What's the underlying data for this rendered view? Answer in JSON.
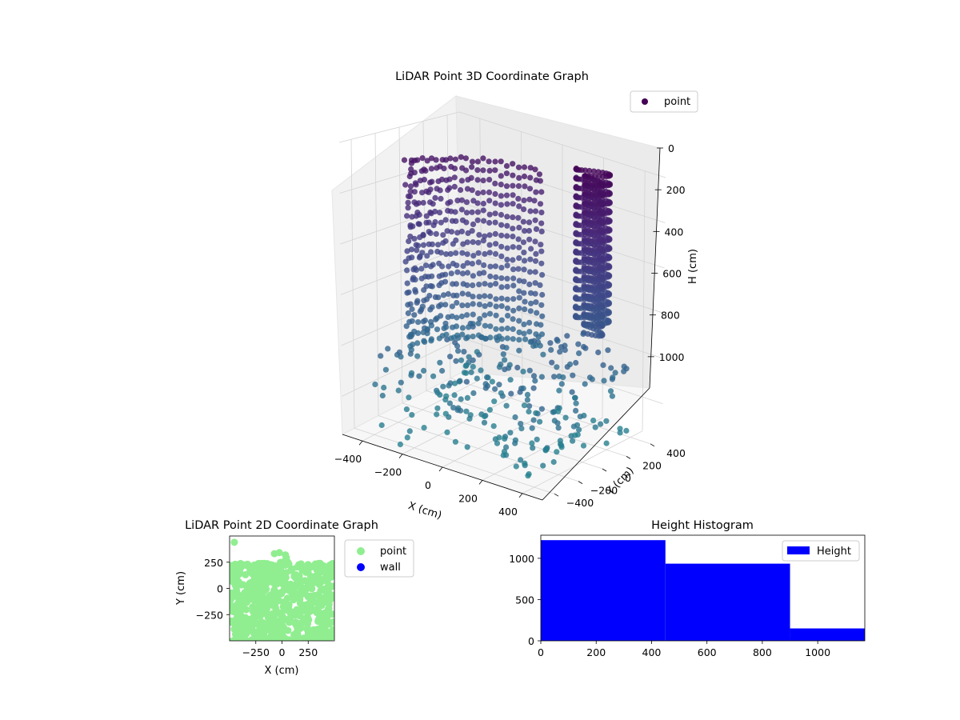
{
  "chart_data": [
    {
      "type": "scatter",
      "title": "LiDAR Point 3D Coordinate Graph",
      "xlabel": "X (cm)",
      "ylabel": "Y (cm)",
      "zlabel": "H (cm)",
      "xlim": [
        -500,
        500
      ],
      "ylim": [
        -500,
        500
      ],
      "zlim": [
        0,
        1150
      ],
      "z_inverted": true,
      "xticks": [
        -400,
        -200,
        0,
        200,
        400
      ],
      "yticks": [
        -400,
        -200,
        0,
        200,
        400
      ],
      "zticks": [
        0,
        200,
        400,
        600,
        800,
        1000
      ],
      "legend": {
        "entries": [
          "point"
        ],
        "placement": "upper-right"
      },
      "colormap": "viridis",
      "marker_color": "#440154",
      "grid": true
    },
    {
      "type": "scatter",
      "title": "LiDAR Point 2D Coordinate Graph",
      "xlabel": "X (cm)",
      "ylabel": "Y (cm)",
      "xlim": [
        -500,
        500
      ],
      "ylim": [
        -500,
        500
      ],
      "xticks": [
        -250,
        0,
        250
      ],
      "yticks": [
        250,
        0,
        -250
      ],
      "legend": {
        "entries": [
          "point",
          "wall"
        ],
        "placement": "outside-right"
      },
      "series": [
        {
          "name": "point",
          "color": "#90ee90"
        },
        {
          "name": "wall",
          "color": "#0000ff"
        }
      ]
    },
    {
      "type": "bar",
      "title": "Height Histogram",
      "xlim": [
        0,
        1170
      ],
      "ylim": [
        0,
        1280
      ],
      "xticks": [
        0,
        200,
        400,
        600,
        800,
        1000
      ],
      "yticks": [
        0,
        500,
        1000
      ],
      "bins": [
        {
          "start": 0,
          "end": 450,
          "count": 1220
        },
        {
          "start": 450,
          "end": 900,
          "count": 935
        },
        {
          "start": 900,
          "end": 1170,
          "count": 150
        }
      ],
      "color": "#0000ff",
      "legend": {
        "entries": [
          "Height"
        ],
        "placement": "upper-right"
      }
    }
  ]
}
